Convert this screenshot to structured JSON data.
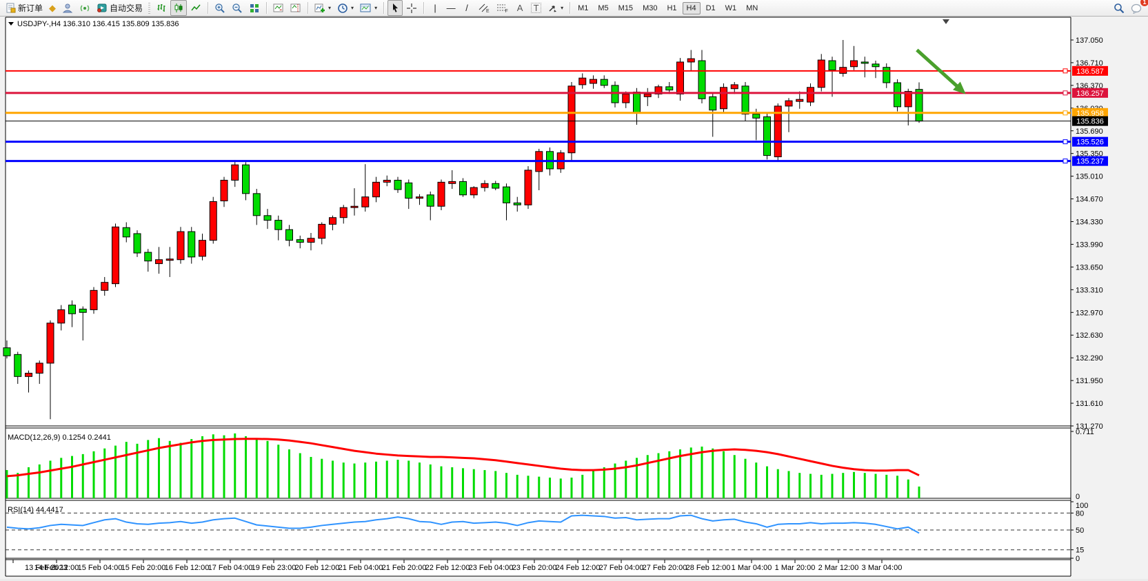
{
  "toolbar": {
    "new_order_label": "新订单",
    "auto_trading_label": "自动交易",
    "timeframe_labels": [
      "M1",
      "M5",
      "M15",
      "M30",
      "H1",
      "H4",
      "D1",
      "W1",
      "MN"
    ],
    "active_timeframe": "H4",
    "notification_count": "1",
    "glyphs": {
      "vline": "|",
      "hline": "—",
      "trendline": "/",
      "text_a": "A",
      "text_label": "T",
      "dropdown": "▾",
      "diamond": "◆"
    }
  },
  "chart_data": {
    "type": "candlestick",
    "symbol_title": "USDJPY-,H4",
    "ohlc_text": "136.310 136.415 135.809 135.836",
    "current_ohlc": {
      "open": 136.31,
      "high": 136.415,
      "low": 135.809,
      "close": 135.836
    },
    "bull_color": "#FF0000",
    "bear_color": "#00DC00",
    "wick_color": "#000000",
    "price_ticks": [
      "137.050",
      "136.710",
      "136.370",
      "136.030",
      "135.690",
      "135.350",
      "135.010",
      "134.670",
      "134.330",
      "133.990",
      "133.650",
      "133.310",
      "132.970",
      "132.630",
      "132.290",
      "131.950",
      "131.610",
      "131.270"
    ],
    "candles": [
      [
        132.44,
        132.55,
        132.28,
        132.32
      ],
      [
        132.34,
        132.38,
        131.9,
        132.01
      ],
      [
        132.01,
        132.1,
        131.77,
        132.06
      ],
      [
        132.06,
        132.25,
        131.9,
        132.21
      ],
      [
        132.21,
        132.85,
        131.37,
        132.81
      ],
      [
        132.81,
        133.08,
        132.7,
        133.01
      ],
      [
        133.08,
        133.15,
        132.75,
        132.95
      ],
      [
        133.02,
        133.06,
        132.55,
        132.97
      ],
      [
        133.01,
        133.35,
        132.95,
        133.3
      ],
      [
        133.3,
        133.5,
        133.22,
        133.42
      ],
      [
        133.4,
        134.3,
        133.35,
        134.25
      ],
      [
        134.24,
        134.32,
        134.02,
        134.1
      ],
      [
        134.15,
        134.2,
        133.8,
        133.86
      ],
      [
        133.87,
        133.92,
        133.58,
        133.74
      ],
      [
        133.7,
        133.95,
        133.55,
        133.76
      ],
      [
        133.75,
        133.95,
        133.5,
        133.77
      ],
      [
        133.76,
        134.25,
        133.7,
        134.18
      ],
      [
        134.18,
        134.25,
        133.7,
        133.8
      ],
      [
        133.81,
        134.15,
        133.75,
        134.05
      ],
      [
        134.05,
        134.7,
        134.0,
        134.63
      ],
      [
        134.64,
        135.0,
        134.55,
        134.95
      ],
      [
        134.95,
        135.25,
        134.85,
        135.18
      ],
      [
        135.18,
        135.22,
        134.65,
        134.75
      ],
      [
        134.75,
        134.82,
        134.28,
        134.42
      ],
      [
        134.42,
        134.52,
        134.22,
        134.35
      ],
      [
        134.35,
        134.42,
        134.05,
        134.21
      ],
      [
        134.21,
        134.28,
        133.96,
        134.05
      ],
      [
        134.06,
        134.12,
        133.93,
        134.02
      ],
      [
        134.02,
        134.16,
        133.9,
        134.08
      ],
      [
        134.08,
        134.32,
        133.99,
        134.29
      ],
      [
        134.29,
        134.42,
        134.2,
        134.39
      ],
      [
        134.39,
        134.58,
        134.3,
        134.54
      ],
      [
        134.54,
        134.83,
        134.42,
        134.56
      ],
      [
        134.55,
        135.19,
        134.48,
        134.7
      ],
      [
        134.7,
        135.0,
        134.62,
        134.92
      ],
      [
        134.92,
        135.02,
        134.86,
        134.95
      ],
      [
        134.95,
        135.0,
        134.76,
        134.81
      ],
      [
        134.91,
        134.96,
        134.52,
        134.68
      ],
      [
        134.68,
        134.74,
        134.58,
        134.7
      ],
      [
        134.73,
        134.78,
        134.35,
        134.56
      ],
      [
        134.56,
        134.96,
        134.5,
        134.92
      ],
      [
        134.9,
        135.1,
        134.82,
        134.93
      ],
      [
        134.93,
        134.98,
        134.7,
        134.73
      ],
      [
        134.73,
        134.86,
        134.68,
        134.84
      ],
      [
        134.84,
        134.95,
        134.78,
        134.9
      ],
      [
        134.9,
        134.94,
        134.8,
        134.83
      ],
      [
        134.85,
        134.9,
        134.35,
        134.61
      ],
      [
        134.61,
        134.7,
        134.48,
        134.58
      ],
      [
        134.58,
        135.16,
        134.52,
        135.1
      ],
      [
        135.08,
        135.42,
        134.8,
        135.38
      ],
      [
        135.38,
        135.44,
        135.02,
        135.12
      ],
      [
        135.12,
        135.4,
        135.06,
        135.36
      ],
      [
        135.36,
        136.42,
        135.25,
        136.36
      ],
      [
        136.38,
        136.55,
        136.32,
        136.48
      ],
      [
        136.4,
        136.52,
        136.32,
        136.46
      ],
      [
        136.46,
        136.52,
        136.33,
        136.37
      ],
      [
        136.37,
        136.43,
        136.04,
        136.11
      ],
      [
        136.11,
        136.28,
        136.03,
        136.24
      ],
      [
        136.27,
        136.33,
        135.78,
        135.96
      ],
      [
        136.2,
        136.33,
        136.06,
        136.24
      ],
      [
        136.24,
        136.38,
        136.18,
        136.35
      ],
      [
        136.35,
        136.42,
        136.24,
        136.3
      ],
      [
        136.24,
        136.78,
        136.14,
        136.72
      ],
      [
        136.72,
        136.9,
        136.58,
        136.77
      ],
      [
        136.74,
        136.9,
        136.1,
        136.17
      ],
      [
        136.2,
        136.26,
        135.6,
        136.0
      ],
      [
        136.02,
        136.4,
        135.96,
        136.34
      ],
      [
        136.32,
        136.42,
        136.24,
        136.38
      ],
      [
        136.36,
        136.42,
        135.84,
        135.94
      ],
      [
        135.94,
        136.02,
        135.55,
        135.88
      ],
      [
        135.9,
        135.96,
        135.26,
        135.32
      ],
      [
        135.3,
        136.1,
        135.24,
        136.06
      ],
      [
        136.06,
        136.18,
        135.67,
        136.14
      ],
      [
        136.13,
        136.28,
        136.02,
        136.16
      ],
      [
        136.12,
        136.4,
        136.06,
        136.34
      ],
      [
        136.34,
        136.84,
        136.28,
        136.75
      ],
      [
        136.74,
        136.8,
        136.2,
        136.6
      ],
      [
        136.55,
        137.05,
        136.5,
        136.64
      ],
      [
        136.65,
        136.96,
        136.6,
        136.74
      ],
      [
        136.72,
        136.8,
        136.49,
        136.7
      ],
      [
        136.69,
        136.74,
        136.48,
        136.65
      ],
      [
        136.64,
        136.7,
        136.33,
        136.41
      ],
      [
        136.41,
        136.46,
        135.98,
        136.05
      ],
      [
        136.05,
        136.32,
        135.77,
        136.28
      ],
      [
        136.31,
        136.415,
        135.809,
        135.836
      ]
    ],
    "hlines": [
      {
        "price": 136.587,
        "label": "136.587",
        "color": "#FF0000",
        "width": 2
      },
      {
        "price": 136.257,
        "label": "136.257",
        "color": "#DC143C",
        "width": 3
      },
      {
        "price": 135.958,
        "label": "135.958",
        "color": "#FFA500",
        "width": 3
      },
      {
        "price": 135.526,
        "label": "135.526",
        "color": "#0000FF",
        "width": 3
      },
      {
        "price": 135.237,
        "label": "135.237",
        "color": "#0000FF",
        "width": 3
      }
    ],
    "current_price": {
      "price": 135.836,
      "label": "135.836",
      "color": "#000000"
    },
    "macd": {
      "title": "MACD(12,26,9)",
      "values": "0.1254 0.2441",
      "scale_top": "0.711",
      "scale_bottom": "0",
      "max": 0.711,
      "hist_color": "#00DC00",
      "signal_color": "#FF0000",
      "histogram": [
        0.3,
        0.27,
        0.33,
        0.36,
        0.4,
        0.43,
        0.45,
        0.47,
        0.5,
        0.53,
        0.56,
        0.6,
        0.58,
        0.62,
        0.64,
        0.61,
        0.59,
        0.63,
        0.66,
        0.68,
        0.67,
        0.69,
        0.66,
        0.64,
        0.61,
        0.57,
        0.52,
        0.48,
        0.44,
        0.42,
        0.4,
        0.38,
        0.37,
        0.38,
        0.39,
        0.4,
        0.41,
        0.4,
        0.38,
        0.36,
        0.34,
        0.33,
        0.32,
        0.31,
        0.3,
        0.29,
        0.27,
        0.25,
        0.24,
        0.23,
        0.22,
        0.21,
        0.22,
        0.25,
        0.29,
        0.33,
        0.37,
        0.4,
        0.43,
        0.46,
        0.48,
        0.5,
        0.52,
        0.54,
        0.55,
        0.53,
        0.5,
        0.46,
        0.42,
        0.38,
        0.34,
        0.31,
        0.29,
        0.27,
        0.26,
        0.25,
        0.26,
        0.27,
        0.28,
        0.27,
        0.26,
        0.25,
        0.24,
        0.2,
        0.125
      ],
      "signal": [
        0.235,
        0.245,
        0.26,
        0.275,
        0.295,
        0.315,
        0.335,
        0.36,
        0.385,
        0.41,
        0.435,
        0.46,
        0.485,
        0.51,
        0.535,
        0.555,
        0.575,
        0.595,
        0.61,
        0.62,
        0.625,
        0.63,
        0.632,
        0.632,
        0.63,
        0.625,
        0.615,
        0.6,
        0.585,
        0.565,
        0.545,
        0.525,
        0.505,
        0.49,
        0.475,
        0.465,
        0.455,
        0.45,
        0.445,
        0.44,
        0.44,
        0.435,
        0.43,
        0.425,
        0.415,
        0.405,
        0.39,
        0.375,
        0.36,
        0.345,
        0.33,
        0.315,
        0.305,
        0.3,
        0.3,
        0.305,
        0.315,
        0.33,
        0.35,
        0.375,
        0.4,
        0.425,
        0.45,
        0.47,
        0.49,
        0.505,
        0.515,
        0.52,
        0.515,
        0.505,
        0.49,
        0.47,
        0.445,
        0.42,
        0.395,
        0.37,
        0.345,
        0.325,
        0.31,
        0.3,
        0.295,
        0.295,
        0.3,
        0.3,
        0.244
      ]
    },
    "rsi": {
      "title": "RSI(14)",
      "value": "44.4417",
      "color": "#2F93FF",
      "levels": [
        {
          "value": 100,
          "label": "100",
          "dashed": false
        },
        {
          "value": 80,
          "label": "80",
          "dashed": true
        },
        {
          "value": 50,
          "label": "50",
          "dashed": true
        },
        {
          "value": 15,
          "label": "15",
          "dashed": true
        },
        {
          "value": 0,
          "label": "0",
          "dashed": false
        }
      ],
      "series": [
        55,
        53,
        52,
        54,
        58,
        60,
        59,
        58,
        63,
        68,
        70,
        64,
        61,
        60,
        62,
        63,
        65,
        62,
        64,
        68,
        70,
        71,
        65,
        59,
        57,
        55,
        53,
        53,
        55,
        58,
        60,
        62,
        64,
        65,
        68,
        70,
        73,
        70,
        65,
        64,
        60,
        64,
        65,
        62,
        63,
        64,
        62,
        58,
        63,
        66,
        65,
        64,
        75,
        76,
        75,
        74,
        71,
        72,
        68,
        69,
        70,
        70,
        75,
        76,
        70,
        66,
        68,
        69,
        64,
        61,
        55,
        60,
        61,
        61,
        63,
        61,
        62,
        62,
        63,
        62,
        60,
        56,
        52,
        55,
        44.44
      ]
    },
    "time_labels": [
      "13 Feb 2023",
      "14 Feb 12:00",
      "15 Feb 04:00",
      "15 Feb 20:00",
      "16 Feb 12:00",
      "17 Feb 04:00",
      "19 Feb 23:00",
      "20 Feb 12:00",
      "21 Feb 04:00",
      "21 Feb 20:00",
      "22 Feb 12:00",
      "23 Feb 04:00",
      "23 Feb 20:00",
      "24 Feb 12:00",
      "27 Feb 04:00",
      "27 Feb 20:00",
      "28 Feb 12:00",
      "1 Mar 04:00",
      "1 Mar 20:00",
      "2 Mar 12:00",
      "3 Mar 04:00"
    ],
    "annotation_arrow": {
      "color": "#4AA02C",
      "from_bar": 83.8,
      "from_price": 136.9,
      "to_bar": 88.3,
      "to_price": 136.24
    }
  }
}
